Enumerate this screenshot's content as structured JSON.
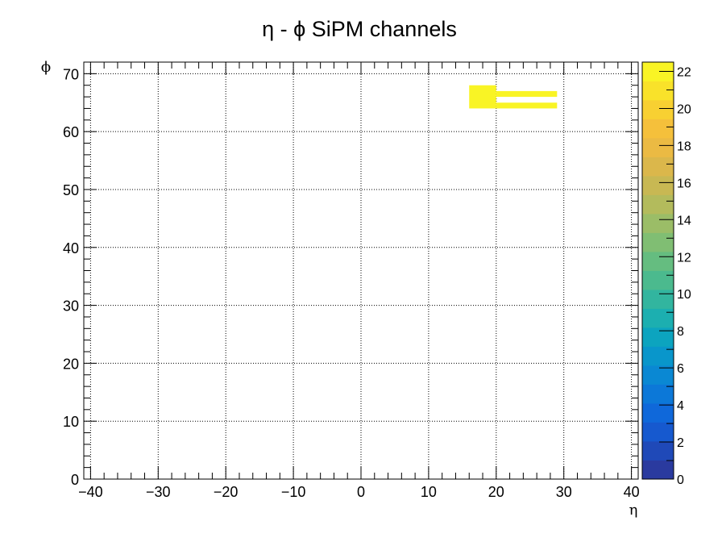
{
  "chart_data": {
    "type": "heatmap",
    "title": "η - ϕ SiPM channels",
    "xlabel": "η",
    "ylabel": "ϕ",
    "xlim": [
      -41,
      41
    ],
    "ylim": [
      0,
      72
    ],
    "zlim": [
      0,
      22.5
    ],
    "grid": true,
    "x_ticks": [
      -40,
      -30,
      -20,
      -10,
      0,
      10,
      20,
      30,
      40
    ],
    "x_tick_labels": [
      "−40",
      "−30",
      "−20",
      "−10",
      "0",
      "10",
      "20",
      "30",
      "40"
    ],
    "y_ticks": [
      0,
      10,
      20,
      30,
      40,
      50,
      60,
      70
    ],
    "y_tick_labels": [
      "0",
      "10",
      "20",
      "30",
      "40",
      "50",
      "60",
      "70"
    ],
    "z_ticks": [
      0,
      2,
      4,
      6,
      8,
      10,
      12,
      14,
      16,
      18,
      20,
      22
    ],
    "z_tick_labels": [
      "0",
      "2",
      "4",
      "6",
      "8",
      "10",
      "12",
      "14",
      "16",
      "18",
      "20",
      "22"
    ],
    "cells": [
      {
        "x0": 16,
        "x1": 20,
        "y0": 64,
        "y1": 68,
        "z": 22
      },
      {
        "x0": 20,
        "x1": 29,
        "y0": 66,
        "y1": 67,
        "z": 22
      },
      {
        "x0": 20,
        "x1": 29,
        "y0": 64,
        "y1": 65,
        "z": 22
      }
    ],
    "palette": [
      "#2a3a9f",
      "#1f49b8",
      "#1659cf",
      "#0f68da",
      "#0c78d8",
      "#0a88d3",
      "#0996cb",
      "#0ca4bf",
      "#1cafb0",
      "#32b59f",
      "#4bba8e",
      "#65bd80",
      "#80be73",
      "#9bbd67",
      "#b3bb5c",
      "#c8b853",
      "#dbb74b",
      "#ebba43",
      "#f5c03b",
      "#f8d032",
      "#f9e22a",
      "#f9f425"
    ]
  }
}
